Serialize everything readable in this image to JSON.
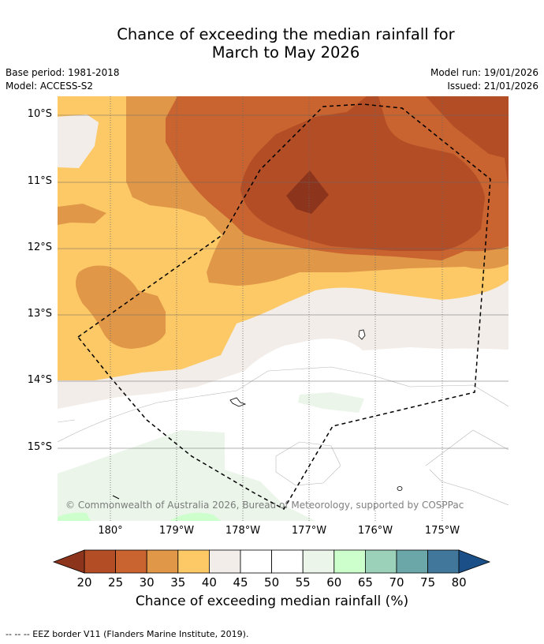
{
  "title_line1": "Chance of exceeding the median rainfall for",
  "title_line2": "March to May 2026",
  "info": {
    "base_period": "Base period: 1981-2018",
    "model": "Model: ACCESS-S2",
    "model_run": "Model run: 19/01/2026",
    "issued": "Issued: 21/01/2026"
  },
  "lat_labels": [
    "10°S",
    "11°S",
    "12°S",
    "13°S",
    "14°S",
    "15°S"
  ],
  "lon_labels": [
    "180°",
    "179°W",
    "178°W",
    "177°W",
    "176°W",
    "175°W"
  ],
  "copyright": "© Commonwealth of Australia 2026, Bureau of Meteorology, supported by COSPPac",
  "colorbar": {
    "ticks": [
      "20",
      "25",
      "30",
      "35",
      "40",
      "45",
      "50",
      "55",
      "60",
      "65",
      "70",
      "75",
      "80"
    ],
    "colors": [
      "#8c341c",
      "#b34d26",
      "#c9632f",
      "#e09848",
      "#fdc966",
      "#f2ede8",
      "#ffffff",
      "#ffffff",
      "#ebf5ea",
      "#ccffcc",
      "#9ad1b8",
      "#6ba6a8",
      "#41779a",
      "#1b4f87"
    ],
    "label": "Chance of exceeding median rainfall (%)"
  },
  "footer": "--  --  -- EEZ border V11 (Flanders Marine Institute, 2019)."
}
